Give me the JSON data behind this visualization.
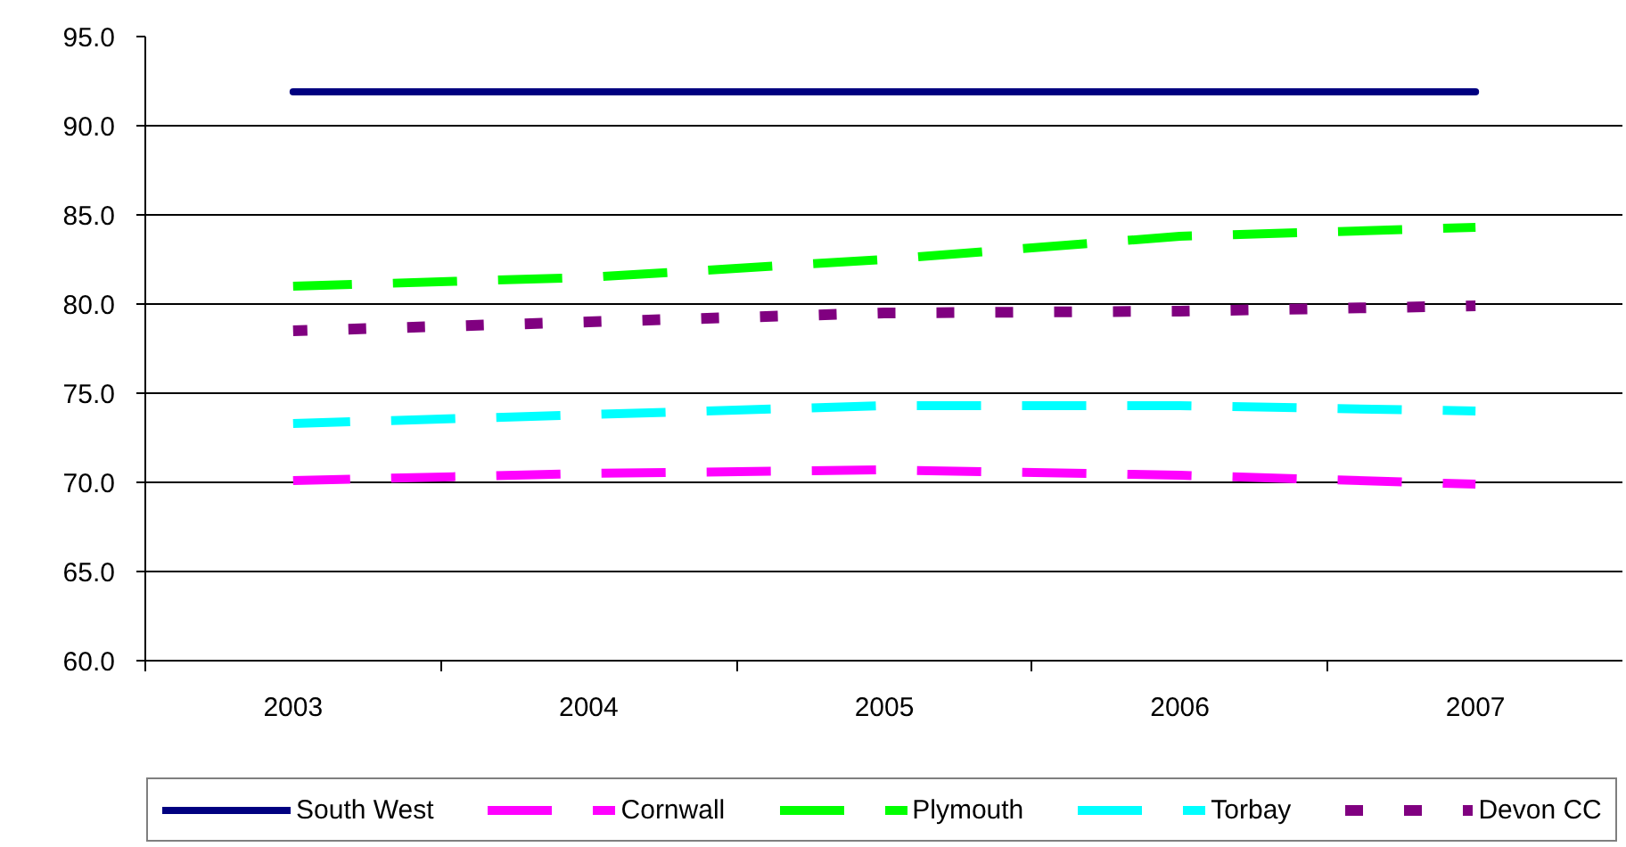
{
  "chart_data": {
    "type": "line",
    "categories": [
      "2003",
      "2004",
      "2005",
      "2006",
      "2007"
    ],
    "ylim": [
      60,
      95
    ],
    "yticks": [
      {
        "value": 60,
        "label": "60.0"
      },
      {
        "value": 65,
        "label": "65.0"
      },
      {
        "value": 70,
        "label": "70.0"
      },
      {
        "value": 75,
        "label": "75.0"
      },
      {
        "value": 80,
        "label": "80.0"
      },
      {
        "value": 85,
        "label": "85.0"
      },
      {
        "value": 90,
        "label": "90.0"
      },
      {
        "value": 95,
        "label": "95.0"
      }
    ],
    "grid": "y",
    "legend": "bottom",
    "series": [
      {
        "name": "South West",
        "color": "#000080",
        "line_style": "solid",
        "values": [
          91.9,
          91.9,
          91.9,
          91.9,
          91.9
        ]
      },
      {
        "name": "Cornwall",
        "color": "#ff00ff",
        "line_style": "dashed",
        "values": [
          70.1,
          70.5,
          70.7,
          70.4,
          69.9
        ]
      },
      {
        "name": "Plymouth",
        "color": "#00ff00",
        "line_style": "dashed",
        "values": [
          81.0,
          81.5,
          82.5,
          83.8,
          84.3
        ]
      },
      {
        "name": "Torbay",
        "color": "#00ffff",
        "line_style": "dashed",
        "values": [
          73.3,
          73.8,
          74.3,
          74.3,
          74.0
        ]
      },
      {
        "name": "Devon CC",
        "color": "#800080",
        "line_style": "dotted",
        "values": [
          78.5,
          79.0,
          79.5,
          79.6,
          79.9
        ]
      }
    ]
  }
}
